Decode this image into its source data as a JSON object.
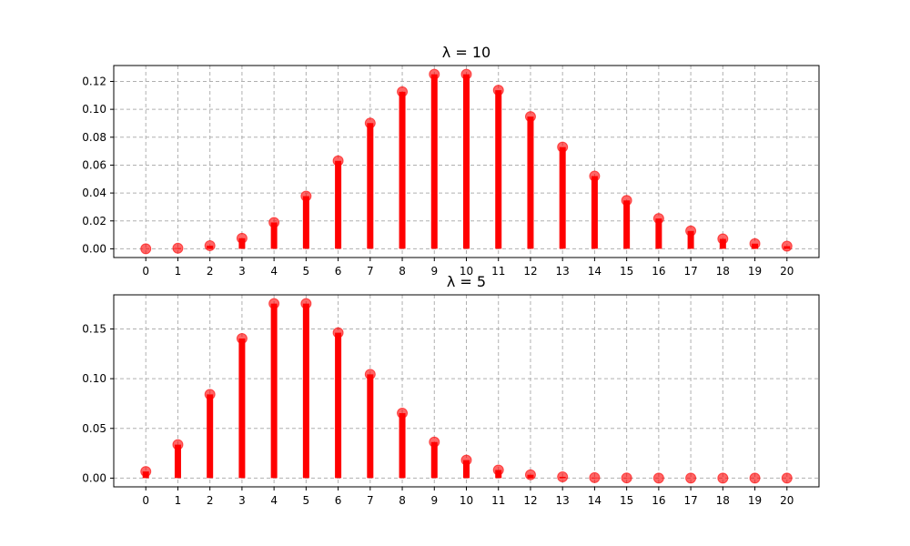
{
  "chart_data": [
    {
      "type": "stem",
      "title": "λ = 10",
      "color": "#ff0000",
      "x": [
        0,
        1,
        2,
        3,
        4,
        5,
        6,
        7,
        8,
        9,
        10,
        11,
        12,
        13,
        14,
        15,
        16,
        17,
        18,
        19,
        20
      ],
      "y": [
        4.54e-05,
        0.000454,
        0.00227,
        0.00757,
        0.0189,
        0.0378,
        0.0631,
        0.0901,
        0.1126,
        0.1251,
        0.1251,
        0.1137,
        0.0948,
        0.0729,
        0.0521,
        0.0347,
        0.0217,
        0.0128,
        0.0071,
        0.0037,
        0.0019
      ],
      "xlim": [
        -1,
        21
      ],
      "ylim": [
        -0.00625,
        0.1314
      ],
      "yticks": [
        "0.00",
        "0.02",
        "0.04",
        "0.06",
        "0.08",
        "0.10",
        "0.12"
      ],
      "xticks": [
        "0",
        "1",
        "2",
        "3",
        "4",
        "5",
        "6",
        "7",
        "8",
        "9",
        "10",
        "11",
        "12",
        "13",
        "14",
        "15",
        "16",
        "17",
        "18",
        "19",
        "20"
      ],
      "grid": true
    },
    {
      "type": "stem",
      "title": "λ = 5",
      "color": "#ff0000",
      "x": [
        0,
        1,
        2,
        3,
        4,
        5,
        6,
        7,
        8,
        9,
        10,
        11,
        12,
        13,
        14,
        15,
        16,
        17,
        18,
        19,
        20
      ],
      "y": [
        0.0067,
        0.0337,
        0.0842,
        0.1404,
        0.1755,
        0.1755,
        0.1462,
        0.1044,
        0.0653,
        0.0363,
        0.0181,
        0.0082,
        0.0034,
        0.0013,
        0.0005,
        0.0002,
        5e-05,
        1e-05,
        4e-06,
        1e-06,
        3e-07
      ],
      "xlim": [
        -1,
        21
      ],
      "ylim": [
        -0.008775,
        0.1843
      ],
      "yticks": [
        "0.00",
        "0.05",
        "0.10",
        "0.15"
      ],
      "xticks": [
        "0",
        "1",
        "2",
        "3",
        "4",
        "5",
        "6",
        "7",
        "8",
        "9",
        "10",
        "11",
        "12",
        "13",
        "14",
        "15",
        "16",
        "17",
        "18",
        "19",
        "20"
      ],
      "grid": true
    }
  ]
}
